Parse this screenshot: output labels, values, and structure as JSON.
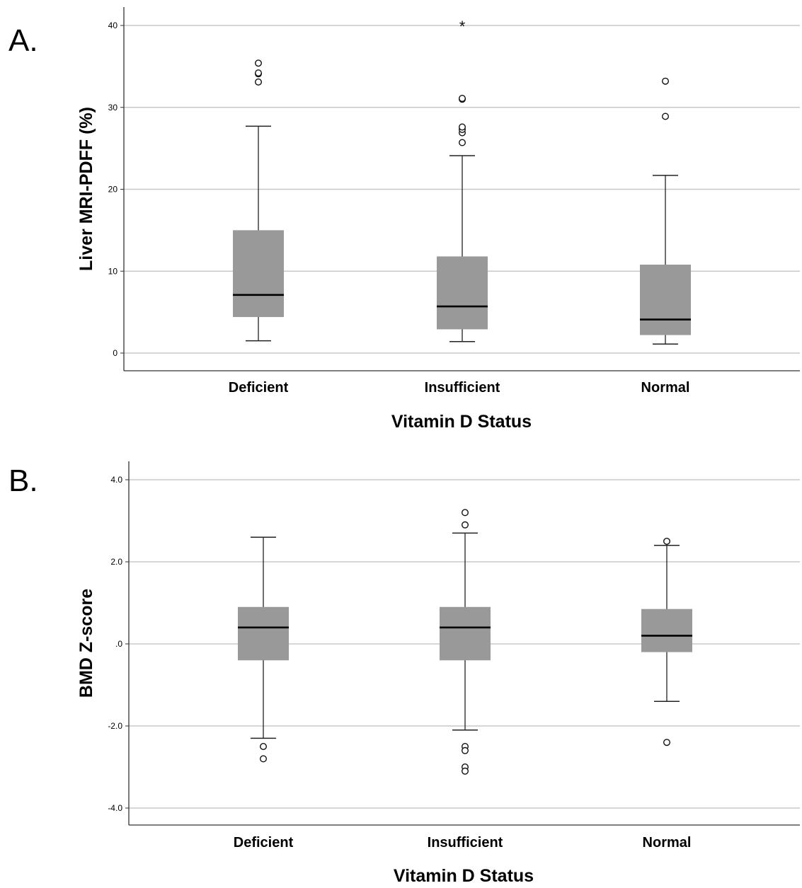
{
  "chart_data": [
    {
      "panel_label": "A.",
      "type": "box",
      "xlabel": "Vitamin D Status",
      "ylabel": "Liver MRI-PDFF (%)",
      "ylim": [
        -2,
        42
      ],
      "yticks": [
        {
          "value": 0,
          "label": "0"
        },
        {
          "value": 10,
          "label": "10"
        },
        {
          "value": 20,
          "label": "20"
        },
        {
          "value": 30,
          "label": "30"
        },
        {
          "value": 40,
          "label": "40"
        }
      ],
      "grid": true,
      "box_color": "#999999",
      "categories": [
        "Deficient",
        "Insufficient",
        "Normal"
      ],
      "boxes": [
        {
          "category": "Deficient",
          "whisker_low": 1.5,
          "q1": 4.4,
          "median": 7.1,
          "q3": 15.0,
          "whisker_high": 27.7,
          "outliers": [
            33.1,
            34.1,
            34.2,
            35.4
          ],
          "extremes": []
        },
        {
          "category": "Insufficient",
          "whisker_low": 1.4,
          "q1": 2.9,
          "median": 5.7,
          "q3": 11.8,
          "whisker_high": 24.1,
          "outliers": [
            25.7,
            26.9,
            27.3,
            27.6,
            31.0,
            31.1
          ],
          "extremes": [
            40.0
          ]
        },
        {
          "category": "Normal",
          "whisker_low": 1.1,
          "q1": 2.2,
          "median": 4.1,
          "q3": 10.8,
          "whisker_high": 21.7,
          "outliers": [
            28.9,
            33.2
          ],
          "extremes": []
        }
      ]
    },
    {
      "panel_label": "B.",
      "type": "box",
      "xlabel": "Vitamin D Status",
      "ylabel": "BMD Z-score",
      "ylim": [
        -4.4,
        4.4
      ],
      "yticks": [
        {
          "value": 4,
          "label": "4.0"
        },
        {
          "value": 2,
          "label": "2.0"
        },
        {
          "value": 0,
          "label": ".0"
        },
        {
          "value": -2,
          "label": "-2.0"
        },
        {
          "value": -4,
          "label": "-4.0"
        }
      ],
      "grid": true,
      "box_color": "#999999",
      "categories": [
        "Deficient",
        "Insufficient",
        "Normal"
      ],
      "boxes": [
        {
          "category": "Deficient",
          "whisker_low": -2.3,
          "q1": -0.4,
          "median": 0.4,
          "q3": 0.9,
          "whisker_high": 2.6,
          "outliers": [
            -2.5,
            -2.8
          ],
          "extremes": []
        },
        {
          "category": "Insufficient",
          "whisker_low": -2.1,
          "q1": -0.4,
          "median": 0.4,
          "q3": 0.9,
          "whisker_high": 2.7,
          "outliers": [
            2.9,
            3.2,
            -2.5,
            -2.6,
            -3.0,
            -3.1
          ],
          "extremes": []
        },
        {
          "category": "Normal",
          "whisker_low": -1.4,
          "q1": -0.2,
          "median": 0.2,
          "q3": 0.85,
          "whisker_high": 2.4,
          "outliers": [
            2.5,
            -2.4
          ],
          "extremes": []
        }
      ]
    }
  ]
}
